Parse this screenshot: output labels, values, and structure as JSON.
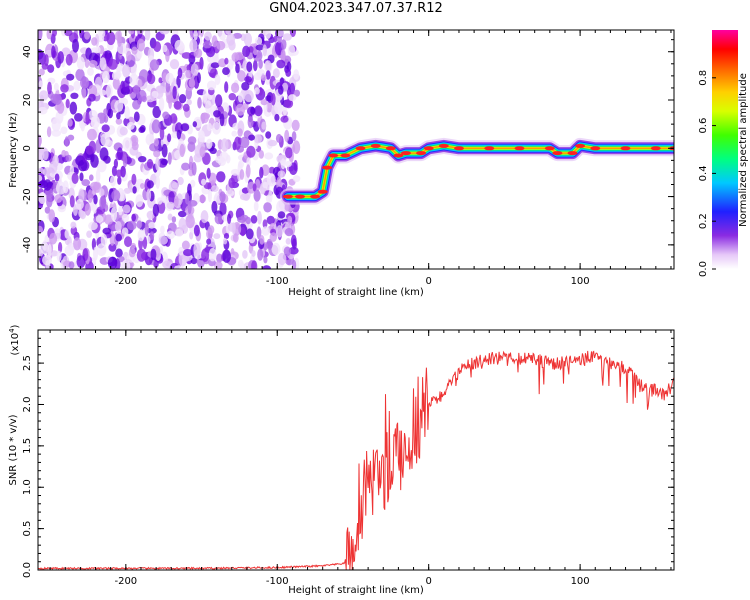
{
  "title": "GN04.2023.347.07.37.R12",
  "chart_data": [
    {
      "type": "heatmap",
      "xlabel": "Height of straight line (km)",
      "ylabel": "Frequency (Hz)",
      "xlim": [
        -258,
        162
      ],
      "ylim": [
        -50,
        49
      ],
      "xticks": [
        -200,
        -100,
        0,
        100
      ],
      "yticks": [
        -40,
        -20,
        0,
        20,
        40
      ],
      "noise_region_x": [
        -258,
        -87
      ],
      "ridge": {
        "x": [
          -93,
          -85,
          -75,
          -70,
          -67,
          -63,
          -55,
          -45,
          -35,
          -25,
          -20,
          -15,
          -5,
          0,
          10,
          20,
          40,
          60,
          80,
          85,
          95,
          100,
          110,
          130,
          150,
          162
        ],
        "y": [
          -20,
          -20,
          -20,
          -18,
          -8,
          -3,
          -3,
          0,
          1,
          0,
          -3,
          -2,
          -2,
          0,
          1,
          0,
          0,
          0,
          0,
          -2,
          -2,
          1,
          0,
          0,
          0,
          0
        ]
      },
      "colorbar": {
        "label": "Normalized spectral amplitude",
        "range": [
          0,
          1
        ],
        "ticks": [
          0.0,
          0.2,
          0.4,
          0.6,
          0.8
        ]
      }
    },
    {
      "type": "line",
      "xlabel": "Height of straight line (km)",
      "ylabel": "SNR (10 * v/v)",
      "multiplier_label": "(x10",
      "multiplier_exp": "4",
      "xlim": [
        -258,
        162
      ],
      "ylim": [
        0,
        2.9
      ],
      "xticks": [
        -200,
        -100,
        0,
        100
      ],
      "yticks": [
        0.0,
        0.5,
        1.0,
        1.5,
        2.0,
        2.5
      ],
      "series": [
        {
          "color": "#ee3333",
          "x": [
            -258,
            -200,
            -150,
            -100,
            -70,
            -55,
            -50,
            -47,
            -44,
            -40,
            -35,
            -30,
            -25,
            -20,
            -15,
            -10,
            -5,
            0,
            5,
            10,
            15,
            20,
            25,
            30,
            40,
            50,
            60,
            70,
            80,
            90,
            100,
            110,
            120,
            130,
            140,
            145,
            150,
            155,
            162
          ],
          "y": [
            0.02,
            0.02,
            0.02,
            0.03,
            0.05,
            0.08,
            0.1,
            0.4,
            0.75,
            0.9,
            1.0,
            1.1,
            1.3,
            1.35,
            1.45,
            1.65,
            1.8,
            2.0,
            2.05,
            2.15,
            2.25,
            2.4,
            2.5,
            2.5,
            2.55,
            2.6,
            2.55,
            2.55,
            2.5,
            2.5,
            2.55,
            2.6,
            2.5,
            2.45,
            2.25,
            2.15,
            2.2,
            2.1,
            2.25
          ]
        }
      ]
    }
  ]
}
